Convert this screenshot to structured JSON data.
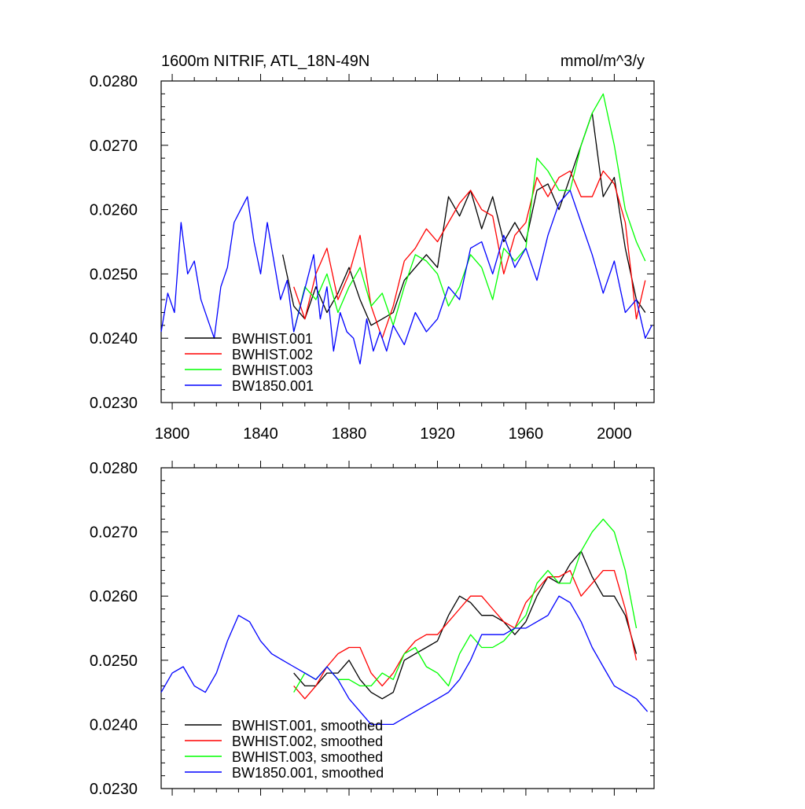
{
  "chart_data": [
    {
      "type": "line",
      "title_left": "1600m NITRIF, ATL_18N-49N",
      "title_right": "mmol/m^3/y",
      "xlabel": "",
      "ylabel": "",
      "xlim": [
        1795,
        2018
      ],
      "ylim": [
        0.023,
        0.028
      ],
      "x_ticks": [
        1800,
        1840,
        1880,
        1920,
        1960,
        2000
      ],
      "x_tick_labels": [
        "1800",
        "1840",
        "1880",
        "1920",
        "1960",
        "2000"
      ],
      "y_ticks": [
        0.023,
        0.024,
        0.025,
        0.026,
        0.027,
        0.028
      ],
      "y_tick_labels": [
        "0.0230",
        "0.0240",
        "0.0250",
        "0.0260",
        "0.0270",
        "0.0280"
      ],
      "legend_position": "bottom-left",
      "series": [
        {
          "name": "BWHIST.001",
          "color": "#000000",
          "x": [
            1850,
            1855,
            1860,
            1865,
            1870,
            1875,
            1880,
            1885,
            1890,
            1895,
            1900,
            1905,
            1910,
            1915,
            1920,
            1925,
            1930,
            1935,
            1940,
            1945,
            1950,
            1955,
            1960,
            1965,
            1970,
            1975,
            1980,
            1985,
            1990,
            1995,
            2000,
            2005,
            2010,
            2014
          ],
          "y": [
            0.0253,
            0.0245,
            0.0243,
            0.0248,
            0.0244,
            0.0247,
            0.0251,
            0.0246,
            0.0242,
            0.0243,
            0.0244,
            0.0249,
            0.0251,
            0.0253,
            0.0251,
            0.0262,
            0.0259,
            0.0263,
            0.0257,
            0.0262,
            0.0255,
            0.0258,
            0.0255,
            0.0263,
            0.0264,
            0.026,
            0.0265,
            0.027,
            0.0275,
            0.0262,
            0.0265,
            0.0254,
            0.0246,
            0.0244
          ]
        },
        {
          "name": "BWHIST.002",
          "color": "#ff0000",
          "x": [
            1855,
            1860,
            1865,
            1870,
            1875,
            1880,
            1885,
            1890,
            1895,
            1900,
            1905,
            1910,
            1915,
            1920,
            1925,
            1930,
            1935,
            1940,
            1945,
            1950,
            1955,
            1960,
            1965,
            1970,
            1975,
            1980,
            1985,
            1990,
            1995,
            2000,
            2005,
            2010,
            2014
          ],
          "y": [
            0.0248,
            0.0243,
            0.025,
            0.0254,
            0.0246,
            0.025,
            0.0256,
            0.0245,
            0.024,
            0.0245,
            0.0252,
            0.0254,
            0.0257,
            0.0255,
            0.0258,
            0.0261,
            0.0263,
            0.026,
            0.0259,
            0.025,
            0.0256,
            0.0258,
            0.0265,
            0.0262,
            0.0265,
            0.0266,
            0.0262,
            0.0262,
            0.0266,
            0.0264,
            0.0258,
            0.0243,
            0.0249
          ]
        },
        {
          "name": "BWHIST.003",
          "color": "#00ff00",
          "x": [
            1855,
            1860,
            1865,
            1870,
            1875,
            1880,
            1885,
            1890,
            1895,
            1900,
            1905,
            1910,
            1915,
            1920,
            1925,
            1930,
            1935,
            1940,
            1945,
            1950,
            1955,
            1960,
            1965,
            1970,
            1975,
            1980,
            1985,
            1990,
            1995,
            2000,
            2005,
            2010,
            2014
          ],
          "y": [
            0.0241,
            0.0248,
            0.0246,
            0.025,
            0.0244,
            0.0248,
            0.0251,
            0.0245,
            0.0247,
            0.0242,
            0.0248,
            0.0253,
            0.0252,
            0.025,
            0.0245,
            0.0248,
            0.0253,
            0.0251,
            0.0246,
            0.0254,
            0.0252,
            0.0254,
            0.0268,
            0.0266,
            0.0263,
            0.0263,
            0.027,
            0.0275,
            0.0278,
            0.027,
            0.026,
            0.0255,
            0.0252
          ]
        },
        {
          "name": "BW1850.001",
          "color": "#0000ff",
          "x": [
            1795,
            1798,
            1801,
            1804,
            1807,
            1810,
            1813,
            1816,
            1819,
            1822,
            1825,
            1828,
            1831,
            1834,
            1837,
            1840,
            1843,
            1846,
            1849,
            1852,
            1855,
            1858,
            1861,
            1864,
            1867,
            1870,
            1873,
            1876,
            1879,
            1882,
            1885,
            1888,
            1891,
            1894,
            1897,
            1900,
            1905,
            1910,
            1915,
            1920,
            1925,
            1930,
            1935,
            1940,
            1945,
            1950,
            1955,
            1960,
            1965,
            1970,
            1975,
            1980,
            1985,
            1990,
            1995,
            2000,
            2005,
            2010,
            2014,
            2017
          ],
          "y": [
            0.0241,
            0.0247,
            0.0244,
            0.0258,
            0.025,
            0.0252,
            0.0246,
            0.0243,
            0.024,
            0.0248,
            0.0251,
            0.0258,
            0.026,
            0.0262,
            0.0255,
            0.025,
            0.0258,
            0.0252,
            0.0246,
            0.0249,
            0.0241,
            0.0245,
            0.0249,
            0.0253,
            0.0243,
            0.0248,
            0.0238,
            0.0244,
            0.0241,
            0.024,
            0.0236,
            0.0243,
            0.0238,
            0.0241,
            0.0238,
            0.0242,
            0.0239,
            0.0244,
            0.0241,
            0.0243,
            0.0248,
            0.0246,
            0.0254,
            0.0255,
            0.025,
            0.0256,
            0.0251,
            0.0254,
            0.0249,
            0.0256,
            0.0261,
            0.0263,
            0.0258,
            0.0253,
            0.0247,
            0.0252,
            0.0244,
            0.0246,
            0.024,
            0.0242
          ]
        }
      ]
    },
    {
      "type": "line",
      "xlabel": "",
      "ylabel": "",
      "xlim": [
        1795,
        2018
      ],
      "ylim": [
        0.023,
        0.028
      ],
      "x_ticks": [
        1800,
        1840,
        1880,
        1920,
        1960,
        2000
      ],
      "y_ticks": [
        0.023,
        0.024,
        0.025,
        0.026,
        0.027,
        0.028
      ],
      "y_tick_labels": [
        "0.0230",
        "0.0240",
        "0.0250",
        "0.0260",
        "0.0270",
        "0.0280"
      ],
      "legend_position": "bottom-left",
      "series": [
        {
          "name": "BWHIST.001, smoothed",
          "color": "#000000",
          "x": [
            1855,
            1860,
            1865,
            1870,
            1875,
            1880,
            1885,
            1890,
            1895,
            1900,
            1905,
            1910,
            1915,
            1920,
            1925,
            1930,
            1935,
            1940,
            1945,
            1950,
            1955,
            1960,
            1965,
            1970,
            1975,
            1980,
            1985,
            1990,
            1995,
            2000,
            2005,
            2010
          ],
          "y": [
            0.0248,
            0.0246,
            0.0246,
            0.0248,
            0.0248,
            0.025,
            0.0247,
            0.0245,
            0.0244,
            0.0245,
            0.025,
            0.0251,
            0.0252,
            0.0253,
            0.0257,
            0.026,
            0.0259,
            0.0257,
            0.0257,
            0.0256,
            0.0254,
            0.0256,
            0.026,
            0.0263,
            0.0262,
            0.0265,
            0.0267,
            0.0263,
            0.026,
            0.026,
            0.0257,
            0.0251
          ]
        },
        {
          "name": "BWHIST.002, smoothed",
          "color": "#ff0000",
          "x": [
            1855,
            1860,
            1865,
            1870,
            1875,
            1880,
            1885,
            1890,
            1895,
            1900,
            1905,
            1910,
            1915,
            1920,
            1925,
            1930,
            1935,
            1940,
            1945,
            1950,
            1955,
            1960,
            1965,
            1970,
            1975,
            1980,
            1985,
            1990,
            1995,
            2000,
            2005,
            2010
          ],
          "y": [
            0.0246,
            0.0244,
            0.0246,
            0.0249,
            0.0251,
            0.0252,
            0.0252,
            0.0248,
            0.0246,
            0.0248,
            0.0251,
            0.0253,
            0.0254,
            0.0254,
            0.0256,
            0.0258,
            0.026,
            0.026,
            0.0258,
            0.0256,
            0.0255,
            0.0259,
            0.0261,
            0.0263,
            0.0263,
            0.0264,
            0.026,
            0.0262,
            0.0264,
            0.0264,
            0.0258,
            0.025
          ]
        },
        {
          "name": "BWHIST.003, smoothed",
          "color": "#00ff00",
          "x": [
            1855,
            1860,
            1865,
            1870,
            1875,
            1880,
            1885,
            1890,
            1895,
            1900,
            1905,
            1910,
            1915,
            1920,
            1925,
            1930,
            1935,
            1940,
            1945,
            1950,
            1955,
            1960,
            1965,
            1970,
            1975,
            1980,
            1985,
            1990,
            1995,
            2000,
            2005,
            2010
          ],
          "y": [
            0.0245,
            0.0248,
            0.0247,
            0.0249,
            0.0247,
            0.0247,
            0.0246,
            0.0246,
            0.0248,
            0.0247,
            0.0251,
            0.0252,
            0.0249,
            0.0248,
            0.0246,
            0.0251,
            0.0254,
            0.0252,
            0.0252,
            0.0253,
            0.0255,
            0.0257,
            0.0262,
            0.0264,
            0.0262,
            0.0262,
            0.0267,
            0.027,
            0.0272,
            0.027,
            0.0264,
            0.0255
          ]
        },
        {
          "name": "BW1850.001, smoothed",
          "color": "#0000ff",
          "x": [
            1795,
            1800,
            1805,
            1810,
            1815,
            1820,
            1825,
            1830,
            1835,
            1840,
            1845,
            1850,
            1855,
            1860,
            1865,
            1870,
            1875,
            1880,
            1885,
            1890,
            1895,
            1900,
            1905,
            1910,
            1915,
            1920,
            1925,
            1930,
            1935,
            1940,
            1945,
            1950,
            1955,
            1960,
            1965,
            1970,
            1975,
            1980,
            1985,
            1990,
            1995,
            2000,
            2005,
            2010,
            2015
          ],
          "y": [
            0.0245,
            0.0248,
            0.0249,
            0.0246,
            0.0245,
            0.0248,
            0.0253,
            0.0257,
            0.0256,
            0.0253,
            0.0251,
            0.025,
            0.0249,
            0.0248,
            0.0247,
            0.0249,
            0.0247,
            0.0244,
            0.0242,
            0.024,
            0.024,
            0.024,
            0.0241,
            0.0242,
            0.0243,
            0.0244,
            0.0245,
            0.0247,
            0.025,
            0.0254,
            0.0254,
            0.0254,
            0.0255,
            0.0255,
            0.0256,
            0.0257,
            0.026,
            0.0259,
            0.0256,
            0.0252,
            0.0249,
            0.0246,
            0.0245,
            0.0244,
            0.0242
          ]
        }
      ]
    }
  ]
}
